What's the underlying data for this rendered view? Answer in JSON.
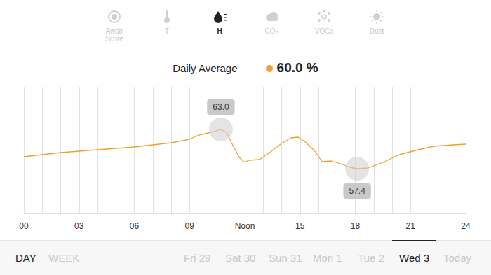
{
  "tabs": {
    "items": [
      "Awair Score",
      "T",
      "H",
      "CO₂",
      "VOCs",
      "Dust"
    ],
    "selected": "H"
  },
  "summary": {
    "label": "Daily Average",
    "value": "60.0 %"
  },
  "period": {
    "items": [
      "DAY",
      "WEEK"
    ],
    "selected": "DAY"
  },
  "days": {
    "items": [
      "Fri 29",
      "Sat 30",
      "Sun 31",
      "Mon 1",
      "Tue 2",
      "Wed 3",
      "Today"
    ],
    "selected": "Wed 3"
  },
  "chart_data": {
    "type": "line",
    "color": "#f0a030",
    "grid": true,
    "tick_labels": "x",
    "x": [
      0,
      1,
      2,
      3,
      4,
      5,
      6,
      7,
      8,
      9,
      9.5,
      10,
      10.3,
      10.7,
      11,
      11.3,
      11.7,
      12,
      12.2,
      12.8,
      13.4,
      14,
      14.5,
      14.9,
      15.3,
      15.8,
      16.2,
      16.7,
      17.2,
      17.7,
      18.1,
      18.7,
      19.5,
      20.4,
      21.4,
      22.3,
      23.3,
      24
    ],
    "values": [
      59.1,
      59.4,
      59.7,
      59.9,
      60.1,
      60.3,
      60.5,
      60.8,
      61.1,
      61.6,
      62.2,
      62.5,
      62.7,
      63.0,
      62.6,
      61.0,
      59.0,
      58.3,
      58.6,
      58.7,
      59.8,
      61.0,
      61.8,
      61.9,
      61.2,
      59.9,
      58.4,
      58.5,
      58.1,
      57.6,
      57.4,
      57.5,
      58.3,
      59.4,
      60.1,
      60.6,
      60.8,
      60.9
    ],
    "xlim": [
      0,
      24
    ],
    "xticks": [
      {
        "value": 0,
        "label": "00"
      },
      {
        "value": 3,
        "label": "03"
      },
      {
        "value": 6,
        "label": "06"
      },
      {
        "value": 9,
        "label": "09"
      },
      {
        "value": 12,
        "label": "Noon"
      },
      {
        "value": 15,
        "label": "15"
      },
      {
        "value": 18,
        "label": "18"
      },
      {
        "value": 21,
        "label": "21"
      },
      {
        "value": 24,
        "label": "24"
      }
    ],
    "ylim": [
      51,
      69
    ],
    "annotations": [
      {
        "x": 10.7,
        "y": 63.0,
        "label": "63.0"
      },
      {
        "x": 18.1,
        "y": 57.4,
        "label": "57.4"
      }
    ]
  }
}
